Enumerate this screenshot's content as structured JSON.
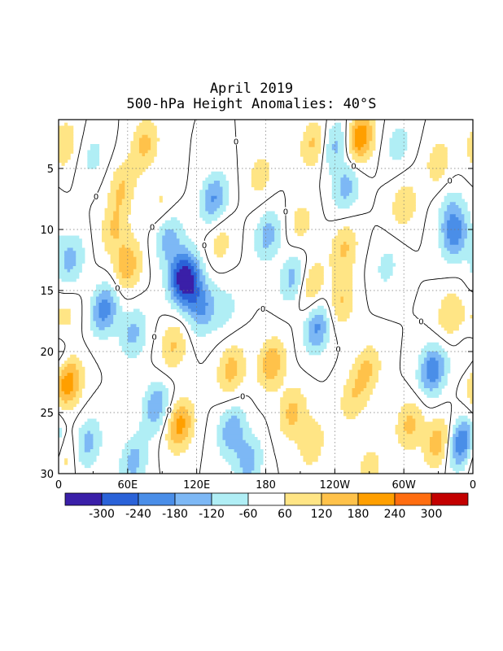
{
  "chart_data": {
    "type": "heatmap",
    "title": "April 2019",
    "subtitle": "500-hPa Height Anomalies: 40°S",
    "x_ticks": [
      "0",
      "60E",
      "120E",
      "180",
      "120W",
      "60W",
      "0"
    ],
    "x_tick_lon": [
      0,
      60,
      120,
      180,
      240,
      300,
      360
    ],
    "y_ticks": [
      "5",
      "10",
      "15",
      "20",
      "25",
      "30"
    ],
    "y_tick_values": [
      5,
      10,
      15,
      20,
      25,
      30
    ],
    "ylim": [
      1,
      30
    ],
    "xlim": [
      0,
      360
    ],
    "grid": true,
    "contour_label": "0",
    "colorbar_labels": [
      "-300",
      "-240",
      "-180",
      "-120",
      "-60",
      "60",
      "120",
      "180",
      "240",
      "300"
    ],
    "levels": [
      -300,
      -240,
      -180,
      -120,
      -60,
      60,
      120,
      180,
      240,
      300
    ],
    "colors": [
      "#3a1fa8",
      "#2a62d8",
      "#4a8ee8",
      "#7db8f5",
      "#b0eef5",
      "#ffffff",
      "#ffe585",
      "#ffc24a",
      "#ff9f00",
      "#ff6d10",
      "#c30000"
    ],
    "features": [
      {
        "day": 14.5,
        "lon": 113,
        "value": -260
      },
      {
        "day": 13.5,
        "lon": 105,
        "value": -190
      },
      {
        "day": 16.5,
        "lon": 125,
        "value": -170
      },
      {
        "day": 16.5,
        "lon": 40,
        "value": -220
      },
      {
        "day": 18.5,
        "lon": 65,
        "value": -140
      },
      {
        "day": 12.5,
        "lon": 10,
        "value": -150
      },
      {
        "day": 7.5,
        "lon": 135,
        "value": -190
      },
      {
        "day": 10.5,
        "lon": 95,
        "value": -150
      },
      {
        "day": 14,
        "lon": 205,
        "value": -170
      },
      {
        "day": 18,
        "lon": 225,
        "value": -200
      },
      {
        "day": 10.5,
        "lon": 182,
        "value": -150
      },
      {
        "day": 3,
        "lon": 240,
        "value": -150
      },
      {
        "day": 6.5,
        "lon": 250,
        "value": -150
      },
      {
        "day": 21.5,
        "lon": 325,
        "value": -230
      },
      {
        "day": 10.5,
        "lon": 345,
        "value": -190
      },
      {
        "day": 27.5,
        "lon": 350,
        "value": -260
      },
      {
        "day": 26.5,
        "lon": 150,
        "value": -170
      },
      {
        "day": 29,
        "lon": 165,
        "value": -150
      },
      {
        "day": 24.5,
        "lon": 85,
        "value": -180
      },
      {
        "day": 27.5,
        "lon": 25,
        "value": -150
      },
      {
        "day": 29,
        "lon": 65,
        "value": -150
      },
      {
        "day": 20,
        "lon": 0,
        "value": -80
      },
      {
        "day": 8.5,
        "lon": 340,
        "value": -100
      },
      {
        "day": 3,
        "lon": 295,
        "value": -90
      },
      {
        "day": 4,
        "lon": 30,
        "value": -80
      },
      {
        "day": 13,
        "lon": 285,
        "value": -80
      },
      {
        "day": 16.5,
        "lon": 145,
        "value": -80
      },
      {
        "day": 16,
        "lon": 245,
        "value": 130
      },
      {
        "day": 14.5,
        "lon": 218,
        "value": 150
      },
      {
        "day": 11.5,
        "lon": 248,
        "value": 130
      },
      {
        "day": 17,
        "lon": 340,
        "value": 120
      },
      {
        "day": 2.5,
        "lon": 262,
        "value": 240
      },
      {
        "day": 3,
        "lon": 222,
        "value": 140
      },
      {
        "day": 22.5,
        "lon": 8,
        "value": 230
      },
      {
        "day": 26,
        "lon": 105,
        "value": 210
      },
      {
        "day": 21,
        "lon": 185,
        "value": 170
      },
      {
        "day": 25,
        "lon": 203,
        "value": 140
      },
      {
        "day": 13,
        "lon": 60,
        "value": 170
      },
      {
        "day": 10,
        "lon": 48,
        "value": 120
      },
      {
        "day": 3,
        "lon": 75,
        "value": 140
      },
      {
        "day": 6.5,
        "lon": 55,
        "value": 120
      },
      {
        "day": 21.5,
        "lon": 150,
        "value": 150
      },
      {
        "day": 19.5,
        "lon": 100,
        "value": 130
      },
      {
        "day": 27.5,
        "lon": 220,
        "value": 110
      },
      {
        "day": 26,
        "lon": 305,
        "value": 140
      },
      {
        "day": 27.5,
        "lon": 330,
        "value": 170
      },
      {
        "day": 21.5,
        "lon": 268,
        "value": 130
      },
      {
        "day": 5.5,
        "lon": 175,
        "value": 90
      },
      {
        "day": 9.5,
        "lon": 210,
        "value": 90
      },
      {
        "day": 24,
        "lon": 255,
        "value": 100
      },
      {
        "day": 8,
        "lon": 300,
        "value": 110
      },
      {
        "day": 3,
        "lon": 5,
        "value": 110
      },
      {
        "day": 4.5,
        "lon": 330,
        "value": 100
      },
      {
        "day": 28.5,
        "lon": 5,
        "value": 100
      },
      {
        "day": 17.5,
        "lon": 5,
        "value": 90
      },
      {
        "day": 11,
        "lon": 140,
        "value": 90
      },
      {
        "day": 8,
        "lon": 90,
        "value": 80
      },
      {
        "day": 29.5,
        "lon": 270,
        "value": 90
      }
    ]
  }
}
